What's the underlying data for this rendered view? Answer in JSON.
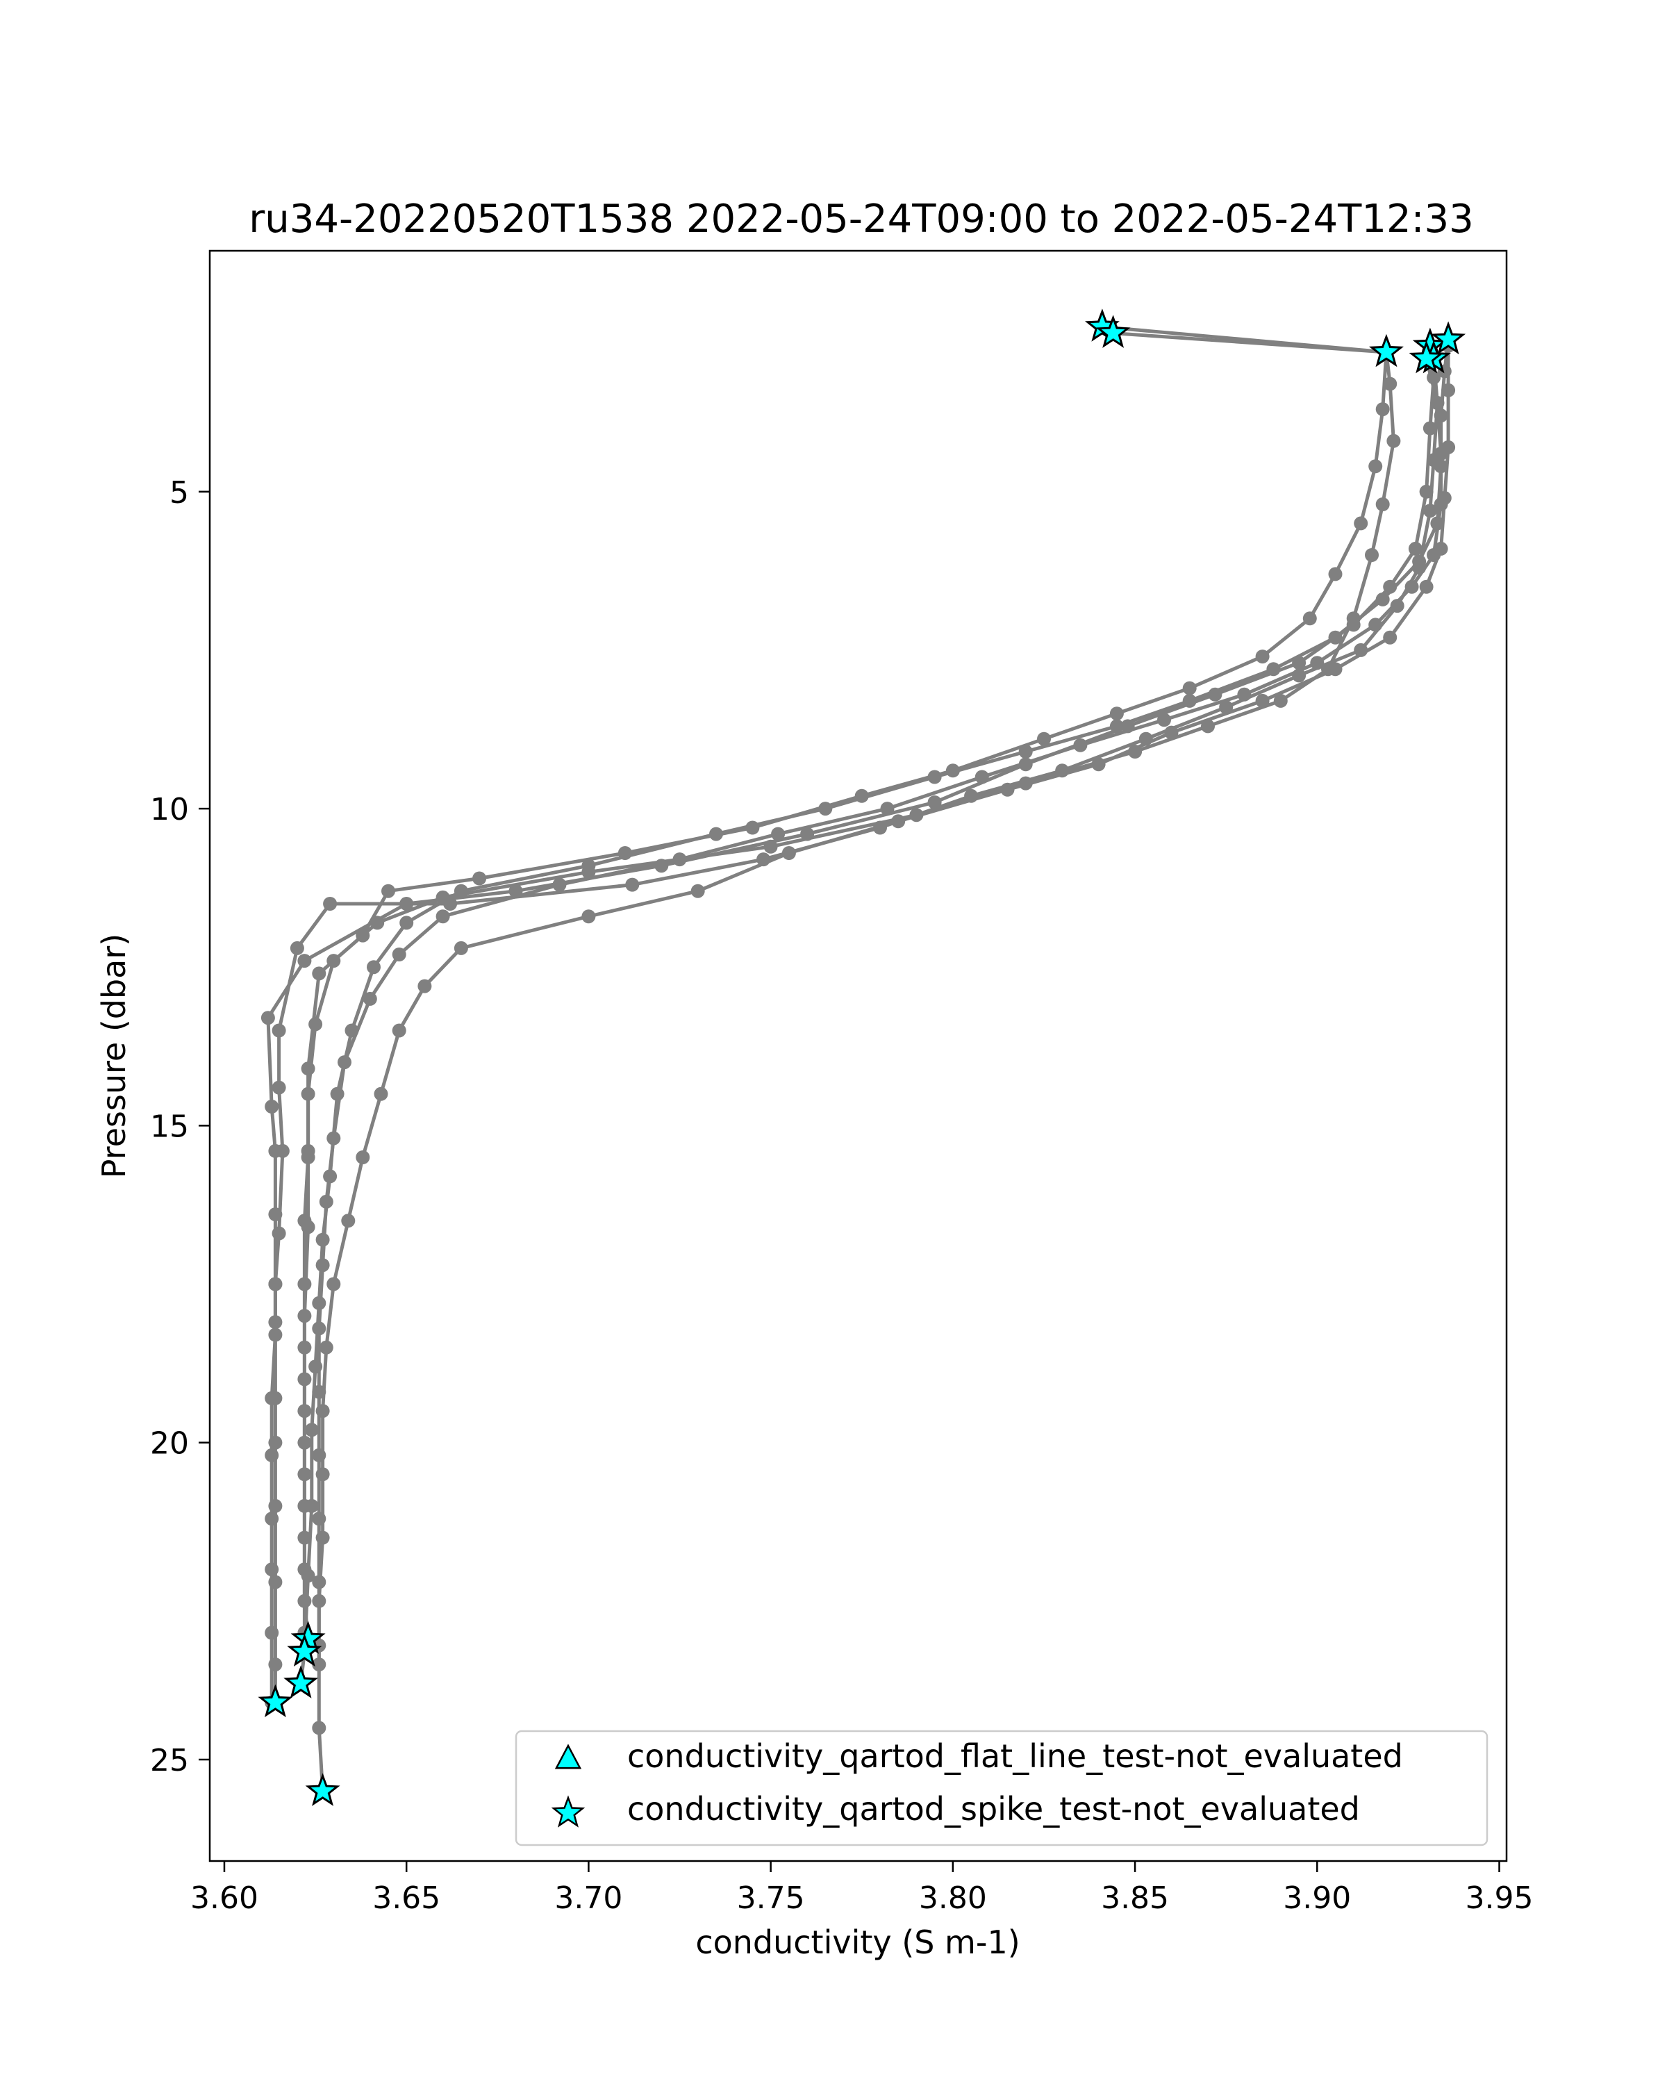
{
  "chart_data": {
    "type": "scatter",
    "title": "ru34-20220520T1538 2022-05-24T09:00 to 2022-05-24T12:33",
    "xlabel": "conductivity (S m-1)",
    "ylabel": "Pressure (dbar)",
    "xlim": [
      3.596,
      3.952
    ],
    "ylim": [
      26.6,
      1.2
    ],
    "y_inverted": true,
    "xticks": [
      3.6,
      3.65,
      3.7,
      3.75,
      3.8,
      3.85,
      3.9,
      3.95
    ],
    "xtick_labels": [
      "3.60",
      "3.65",
      "3.70",
      "3.75",
      "3.80",
      "3.85",
      "3.90",
      "3.95"
    ],
    "yticks": [
      5,
      10,
      15,
      20,
      25
    ],
    "ytick_labels": [
      "5",
      "10",
      "15",
      "20",
      "25"
    ],
    "grid": false,
    "legend_position": "lower-right",
    "colors": {
      "profile_line": "#808080",
      "flag_marker_fill": "#00ffff",
      "flag_marker_edge": "#000000"
    },
    "series": [
      {
        "marker": "circle",
        "values": [
          [
            3.841,
            2.4
          ],
          [
            3.919,
            2.8
          ],
          [
            3.92,
            3.3
          ],
          [
            3.921,
            4.2
          ],
          [
            3.918,
            5.2
          ],
          [
            3.915,
            6.0
          ],
          [
            3.91,
            7.0
          ],
          [
            3.903,
            7.8
          ],
          [
            3.89,
            8.3
          ],
          [
            3.87,
            8.7
          ],
          [
            3.85,
            9.1
          ],
          [
            3.82,
            9.6
          ],
          [
            3.79,
            10.1
          ],
          [
            3.75,
            10.6
          ],
          [
            3.7,
            11.0
          ],
          [
            3.66,
            11.4
          ],
          [
            3.642,
            11.8
          ],
          [
            3.63,
            12.4
          ],
          [
            3.625,
            13.4
          ],
          [
            3.623,
            14.5
          ],
          [
            3.623,
            15.5
          ],
          [
            3.622,
            16.5
          ],
          [
            3.622,
            17.5
          ],
          [
            3.622,
            18.5
          ],
          [
            3.622,
            19.5
          ],
          [
            3.622,
            20.5
          ],
          [
            3.622,
            21.5
          ],
          [
            3.622,
            22.5
          ],
          [
            3.623,
            23.1
          ]
        ]
      },
      {
        "marker": "circle",
        "values": [
          [
            3.844,
            2.5
          ],
          [
            3.919,
            2.8
          ],
          [
            3.918,
            3.7
          ],
          [
            3.916,
            4.6
          ],
          [
            3.912,
            5.5
          ],
          [
            3.905,
            6.3
          ],
          [
            3.898,
            7.0
          ],
          [
            3.885,
            7.6
          ],
          [
            3.865,
            8.1
          ],
          [
            3.845,
            8.5
          ],
          [
            3.825,
            8.9
          ],
          [
            3.8,
            9.4
          ],
          [
            3.775,
            9.8
          ],
          [
            3.745,
            10.3
          ],
          [
            3.71,
            10.7
          ],
          [
            3.67,
            11.1
          ],
          [
            3.645,
            11.3
          ],
          [
            3.638,
            12.0
          ],
          [
            3.626,
            12.6
          ],
          [
            3.623,
            14.1
          ],
          [
            3.623,
            15.4
          ],
          [
            3.623,
            16.6
          ],
          [
            3.622,
            18.0
          ],
          [
            3.622,
            19.0
          ],
          [
            3.622,
            20.0
          ],
          [
            3.622,
            21.0
          ],
          [
            3.622,
            22.0
          ],
          [
            3.622,
            23.0
          ],
          [
            3.622,
            23.3
          ]
        ]
      },
      {
        "marker": "circle",
        "values": [
          [
            3.931,
            2.7
          ],
          [
            3.932,
            3.2
          ],
          [
            3.931,
            4.0
          ],
          [
            3.93,
            5.0
          ],
          [
            3.927,
            5.9
          ],
          [
            3.92,
            6.5
          ],
          [
            3.91,
            7.1
          ],
          [
            3.895,
            7.7
          ],
          [
            3.872,
            8.2
          ],
          [
            3.848,
            8.7
          ],
          [
            3.82,
            9.3
          ],
          [
            3.795,
            9.9
          ],
          [
            3.76,
            10.4
          ],
          [
            3.72,
            10.9
          ],
          [
            3.68,
            11.3
          ],
          [
            3.65,
            11.5
          ],
          [
            3.622,
            12.4
          ],
          [
            3.612,
            13.3
          ],
          [
            3.613,
            14.7
          ],
          [
            3.614,
            15.4
          ],
          [
            3.614,
            16.4
          ],
          [
            3.614,
            17.5
          ],
          [
            3.614,
            18.3
          ],
          [
            3.613,
            19.3
          ],
          [
            3.613,
            20.2
          ],
          [
            3.613,
            21.2
          ],
          [
            3.613,
            22.0
          ],
          [
            3.613,
            23.0
          ],
          [
            3.613,
            24.1
          ]
        ]
      },
      {
        "marker": "circle",
        "values": [
          [
            3.932,
            2.9
          ],
          [
            3.933,
            3.6
          ],
          [
            3.932,
            4.5
          ],
          [
            3.931,
            5.3
          ],
          [
            3.928,
            6.2
          ],
          [
            3.922,
            6.8
          ],
          [
            3.912,
            7.5
          ],
          [
            3.895,
            7.9
          ],
          [
            3.875,
            8.4
          ],
          [
            3.853,
            8.9
          ],
          [
            3.83,
            9.4
          ],
          [
            3.805,
            9.8
          ],
          [
            3.78,
            10.3
          ],
          [
            3.748,
            10.8
          ],
          [
            3.712,
            11.2
          ],
          [
            3.662,
            11.5
          ],
          [
            3.629,
            11.5
          ],
          [
            3.62,
            12.2
          ],
          [
            3.615,
            13.5
          ],
          [
            3.615,
            14.4
          ],
          [
            3.616,
            15.4
          ],
          [
            3.615,
            16.7
          ],
          [
            3.614,
            17.5
          ],
          [
            3.614,
            18.1
          ],
          [
            3.614,
            19.3
          ],
          [
            3.614,
            20.0
          ],
          [
            3.614,
            21.0
          ],
          [
            3.614,
            22.2
          ],
          [
            3.614,
            23.5
          ],
          [
            3.614,
            24.1
          ]
        ]
      },
      {
        "marker": "circle",
        "values": [
          [
            3.936,
            2.6
          ],
          [
            3.935,
            3.1
          ],
          [
            3.934,
            3.8
          ],
          [
            3.934,
            4.6
          ],
          [
            3.933,
            5.5
          ],
          [
            3.928,
            6.1
          ],
          [
            3.918,
            6.7
          ],
          [
            3.905,
            7.3
          ],
          [
            3.888,
            7.8
          ],
          [
            3.865,
            8.3
          ],
          [
            3.845,
            8.7
          ],
          [
            3.82,
            9.1
          ],
          [
            3.795,
            9.5
          ],
          [
            3.765,
            10.0
          ],
          [
            3.735,
            10.4
          ],
          [
            3.7,
            10.9
          ],
          [
            3.665,
            11.3
          ],
          [
            3.65,
            11.8
          ],
          [
            3.641,
            12.5
          ],
          [
            3.635,
            13.5
          ],
          [
            3.631,
            14.5
          ],
          [
            3.629,
            15.8
          ],
          [
            3.627,
            16.8
          ],
          [
            3.626,
            17.8
          ],
          [
            3.625,
            18.8
          ],
          [
            3.624,
            19.8
          ],
          [
            3.624,
            21.0
          ],
          [
            3.623,
            22.1
          ],
          [
            3.622,
            23.3
          ],
          [
            3.621,
            23.8
          ]
        ]
      },
      {
        "marker": "circle",
        "values": [
          [
            3.93,
            2.9
          ],
          [
            3.933,
            3.6
          ],
          [
            3.934,
            4.4
          ],
          [
            3.934,
            5.2
          ],
          [
            3.932,
            6.0
          ],
          [
            3.926,
            6.5
          ],
          [
            3.916,
            7.1
          ],
          [
            3.9,
            7.7
          ],
          [
            3.88,
            8.2
          ],
          [
            3.858,
            8.6
          ],
          [
            3.835,
            9.0
          ],
          [
            3.808,
            9.5
          ],
          [
            3.782,
            10.0
          ],
          [
            3.752,
            10.4
          ],
          [
            3.725,
            10.8
          ],
          [
            3.692,
            11.2
          ],
          [
            3.66,
            11.7
          ],
          [
            3.648,
            12.3
          ],
          [
            3.64,
            13.0
          ],
          [
            3.633,
            14.0
          ],
          [
            3.63,
            15.2
          ],
          [
            3.628,
            16.2
          ],
          [
            3.627,
            17.2
          ],
          [
            3.626,
            18.2
          ],
          [
            3.626,
            19.2
          ],
          [
            3.626,
            20.2
          ],
          [
            3.626,
            21.2
          ],
          [
            3.626,
            22.2
          ],
          [
            3.626,
            23.2
          ],
          [
            3.626,
            24.5
          ],
          [
            3.627,
            25.5
          ]
        ]
      },
      {
        "marker": "circle",
        "values": [
          [
            3.936,
            2.7
          ],
          [
            3.936,
            3.4
          ],
          [
            3.936,
            4.3
          ],
          [
            3.935,
            5.1
          ],
          [
            3.934,
            5.9
          ],
          [
            3.93,
            6.5
          ],
          [
            3.92,
            7.3
          ],
          [
            3.905,
            7.8
          ],
          [
            3.885,
            8.3
          ],
          [
            3.86,
            8.8
          ],
          [
            3.84,
            9.3
          ],
          [
            3.815,
            9.7
          ],
          [
            3.785,
            10.2
          ],
          [
            3.755,
            10.7
          ],
          [
            3.73,
            11.3
          ],
          [
            3.7,
            11.7
          ],
          [
            3.665,
            12.2
          ],
          [
            3.655,
            12.8
          ],
          [
            3.648,
            13.5
          ],
          [
            3.643,
            14.5
          ],
          [
            3.638,
            15.5
          ],
          [
            3.634,
            16.5
          ],
          [
            3.63,
            17.5
          ],
          [
            3.628,
            18.5
          ],
          [
            3.627,
            19.5
          ],
          [
            3.627,
            20.5
          ],
          [
            3.627,
            21.5
          ],
          [
            3.626,
            22.5
          ],
          [
            3.626,
            23.5
          ]
        ]
      }
    ],
    "flag_series": [
      {
        "name": "conductivity_qartod_flat_line_test-not_evaluated",
        "marker": "triangle",
        "values": []
      },
      {
        "name": "conductivity_qartod_spike_test-not_evaluated",
        "marker": "star",
        "values": [
          [
            3.841,
            2.4
          ],
          [
            3.844,
            2.5
          ],
          [
            3.919,
            2.8
          ],
          [
            3.931,
            2.7
          ],
          [
            3.936,
            2.6
          ],
          [
            3.932,
            2.9
          ],
          [
            3.93,
            2.9
          ],
          [
            3.623,
            23.1
          ],
          [
            3.622,
            23.3
          ],
          [
            3.621,
            23.8
          ],
          [
            3.614,
            24.1
          ],
          [
            3.627,
            25.5
          ]
        ]
      }
    ],
    "legend": [
      {
        "label": "conductivity_qartod_flat_line_test-not_evaluated",
        "marker": "triangle"
      },
      {
        "label": "conductivity_qartod_spike_test-not_evaluated",
        "marker": "star"
      }
    ]
  }
}
